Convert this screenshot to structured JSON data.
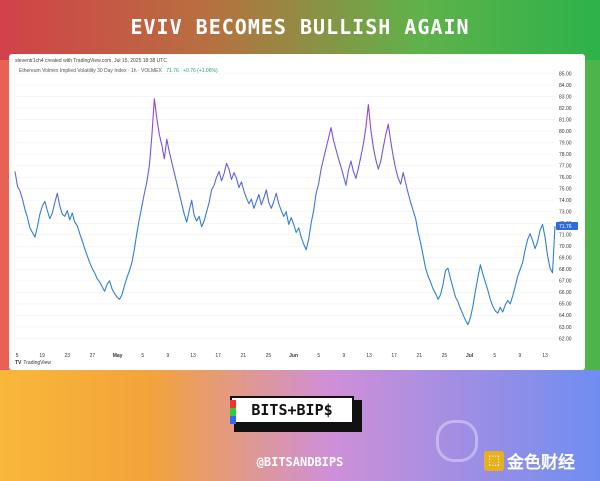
{
  "header": {
    "title": "EVIV BECOMES BULLISH AGAIN"
  },
  "card": {
    "created_by": "steventr1ch4 created with TradingView.com, Jul 15, 2025 18:38 UTC",
    "legend_name": "Ethereum Volmex Implied Volatility 30 Day Index · 1h · VOLMEX",
    "legend_last": "71.76",
    "legend_change": "+0.76 (+1.06%)",
    "footer": "TradingView"
  },
  "footer": {
    "logo_text": "BITS+BIP$",
    "handle": "@BITSANDBIPS",
    "watermark": "金色财经"
  },
  "colors": {
    "line_low": "#2d80d6",
    "line_high": "#9c3bd8",
    "last_badge": "#2f6bd9"
  },
  "chart_data": {
    "type": "line",
    "title": "",
    "ylim": [
      61,
      86
    ],
    "y_ticks": [
      62,
      63,
      64,
      65,
      66,
      67,
      68,
      69,
      70,
      71,
      72,
      73,
      74,
      75,
      76,
      77,
      78,
      79,
      80,
      81,
      82,
      83,
      84,
      85
    ],
    "x_tick_labels": [
      "5",
      "19",
      "23",
      "27",
      "May",
      "5",
      "9",
      "13",
      "17",
      "21",
      "25",
      "Jun",
      "5",
      "9",
      "13",
      "17",
      "21",
      "25",
      "Jul",
      "5",
      "9",
      "13"
    ],
    "last_value": 71.76,
    "series": [
      {
        "values": [
          76.5,
          75.2,
          74.8,
          74.1,
          73.2,
          72.5,
          71.6,
          71.2,
          70.8,
          71.7,
          72.8,
          73.5,
          73.9,
          73.1,
          72.4,
          72.9,
          73.8,
          74.6,
          73.5,
          72.8,
          72.6,
          73.1,
          72.3,
          72.9,
          72.1,
          71.8,
          71.1,
          70.5,
          69.8,
          69.2,
          68.6,
          68.1,
          67.7,
          67.2,
          66.9,
          66.5,
          66.1,
          66.7,
          67.0,
          66.3,
          65.9,
          65.6,
          65.4,
          65.8,
          66.6,
          67.3,
          67.9,
          68.6,
          69.8,
          71.2,
          72.4,
          73.5,
          74.6,
          75.6,
          77.0,
          79.6,
          82.8,
          81.1,
          79.7,
          78.8,
          77.6,
          79.3,
          78.2,
          77.3,
          76.4,
          75.5,
          74.6,
          73.7,
          72.8,
          72.1,
          73.1,
          74.0,
          72.7,
          72.2,
          72.6,
          71.7,
          72.2,
          73.0,
          73.8,
          74.9,
          75.3,
          76.0,
          76.5,
          75.7,
          76.3,
          77.2,
          76.7,
          75.8,
          76.4,
          75.9,
          75.1,
          75.6,
          74.8,
          74.2,
          73.7,
          74.1,
          73.3,
          73.9,
          74.5,
          73.6,
          74.2,
          74.9,
          73.8,
          73.3,
          73.9,
          74.6,
          73.7,
          73.1,
          72.6,
          73.0,
          71.9,
          72.5,
          71.9,
          71.2,
          71.6,
          70.8,
          70.2,
          69.7,
          70.6,
          72.0,
          73.1,
          74.6,
          75.4,
          76.7,
          77.6,
          78.5,
          79.4,
          80.3,
          79.2,
          78.4,
          77.6,
          76.9,
          76.1,
          75.3,
          76.6,
          77.4,
          76.5,
          75.9,
          76.8,
          77.8,
          78.9,
          80.3,
          82.3,
          80.1,
          78.6,
          77.5,
          76.7,
          77.4,
          78.6,
          79.7,
          80.6,
          79.1,
          77.8,
          76.7,
          75.9,
          75.4,
          76.4,
          75.5,
          74.6,
          73.8,
          73.1,
          72.4,
          71.2,
          70.3,
          69.2,
          68.1,
          67.4,
          66.9,
          66.3,
          65.9,
          65.4,
          65.8,
          66.7,
          67.9,
          68.1,
          67.2,
          66.4,
          65.6,
          65.2,
          64.6,
          64.1,
          63.6,
          63.2,
          63.8,
          64.8,
          66.1,
          67.3,
          68.4,
          67.6,
          66.9,
          66.2,
          65.4,
          64.8,
          64.4,
          64.2,
          64.7,
          64.3,
          64.9,
          65.3,
          65.0,
          65.7,
          66.5,
          67.4,
          68.0,
          68.6,
          69.7,
          70.6,
          71.1,
          70.5,
          69.8,
          70.4,
          71.4,
          71.9,
          70.8,
          69.2,
          68.1,
          67.7,
          71.76
        ]
      }
    ]
  }
}
